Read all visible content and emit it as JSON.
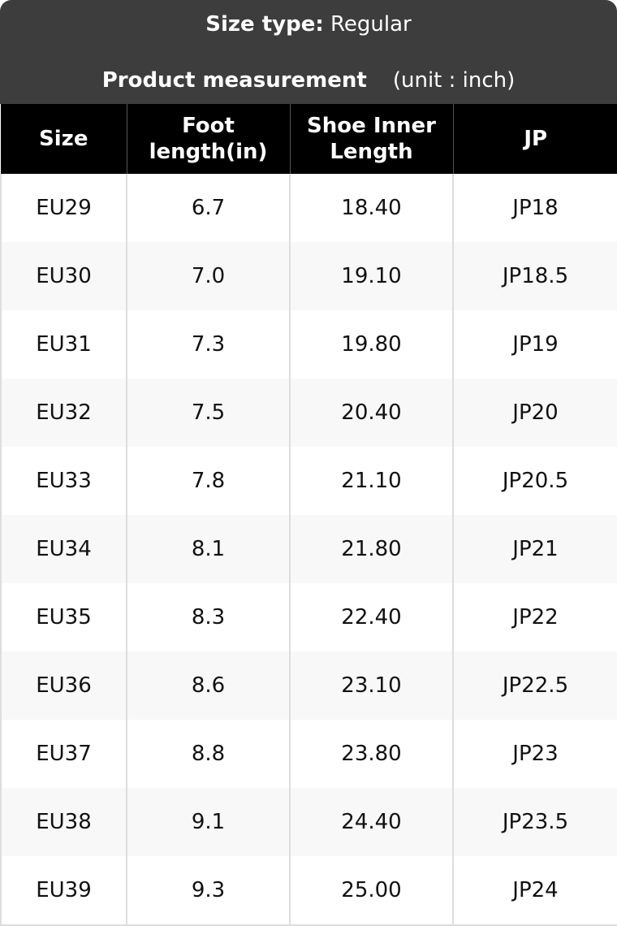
{
  "header": {
    "size_type_label": "Size type:",
    "size_type_value": "Regular",
    "measurement_label": "Product measurement",
    "unit": "(unit : inch)"
  },
  "table": {
    "columns": [
      "Size",
      "Foot length(in)",
      "Shoe Inner Length",
      "JP"
    ],
    "rows": [
      [
        "EU29",
        "6.7",
        "18.40",
        "JP18"
      ],
      [
        "EU30",
        "7.0",
        "19.10",
        "JP18.5"
      ],
      [
        "EU31",
        "7.3",
        "19.80",
        "JP19"
      ],
      [
        "EU32",
        "7.5",
        "20.40",
        "JP20"
      ],
      [
        "EU33",
        "7.8",
        "21.10",
        "JP20.5"
      ],
      [
        "EU34",
        "8.1",
        "21.80",
        "JP21"
      ],
      [
        "EU35",
        "8.3",
        "22.40",
        "JP22"
      ],
      [
        "EU36",
        "8.6",
        "23.10",
        "JP22.5"
      ],
      [
        "EU37",
        "8.8",
        "23.80",
        "JP23"
      ],
      [
        "EU38",
        "9.1",
        "24.40",
        "JP23.5"
      ],
      [
        "EU39",
        "9.3",
        "25.00",
        "JP24"
      ]
    ]
  }
}
